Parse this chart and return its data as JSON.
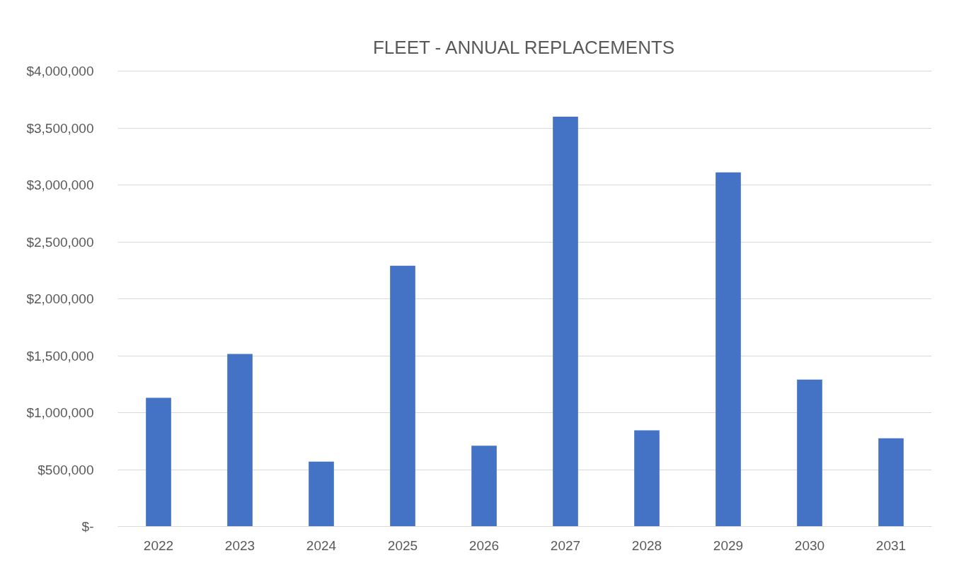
{
  "chart_data": {
    "type": "bar",
    "title": "FLEET - ANNUAL REPLACEMENTS",
    "categories": [
      "2022",
      "2023",
      "2024",
      "2025",
      "2026",
      "2027",
      "2028",
      "2029",
      "2030",
      "2031"
    ],
    "values": [
      1130000,
      1515000,
      570000,
      2290000,
      710000,
      3600000,
      845000,
      3110000,
      1290000,
      775000
    ],
    "color": "#4472c4",
    "ylim": [
      0,
      4000000
    ],
    "yticks": [
      {
        "value": 0,
        "label": "$-"
      },
      {
        "value": 500000,
        "label": "$500,000"
      },
      {
        "value": 1000000,
        "label": "$1,000,000"
      },
      {
        "value": 1500000,
        "label": "$1,500,000"
      },
      {
        "value": 2000000,
        "label": "$2,000,000"
      },
      {
        "value": 2500000,
        "label": "$2,500,000"
      },
      {
        "value": 3000000,
        "label": "$3,000,000"
      },
      {
        "value": 3500000,
        "label": "$3,500,000"
      },
      {
        "value": 4000000,
        "label": "$4,000,000"
      }
    ],
    "grid": "y"
  }
}
